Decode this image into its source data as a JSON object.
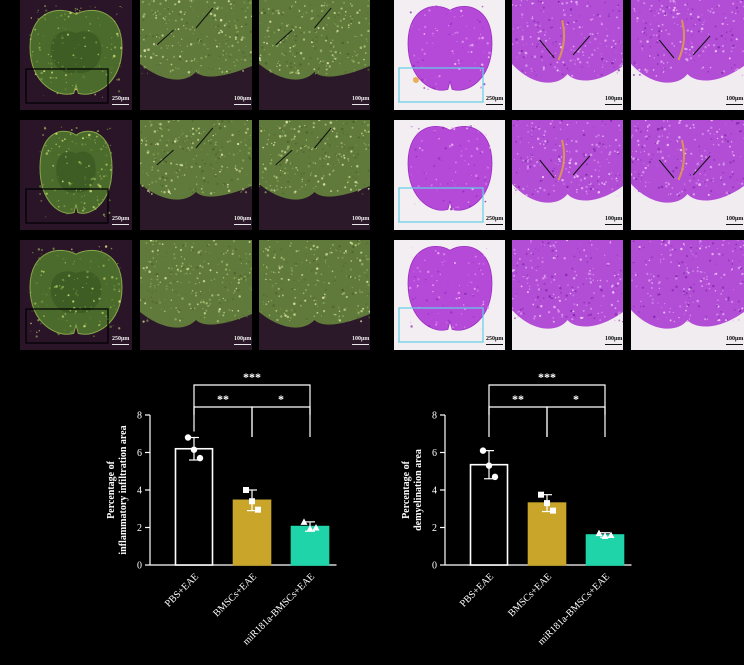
{
  "micrographs": {
    "scale_labels": {
      "overview": "250μm",
      "zoom": "100μm"
    }
  },
  "chart_data": [
    {
      "type": "bar",
      "title": "",
      "xlabel": "",
      "ylabel": "Percentage of\ninflammatory infiltration area",
      "categories": [
        "PBS+EAE",
        "BMSCs+EAE",
        "miR181a-BMSCs+EAE"
      ],
      "values": [
        6.2,
        3.45,
        2.05
      ],
      "errors": [
        0.6,
        0.55,
        0.25
      ],
      "points": [
        [
          6.8,
          6.15,
          5.7
        ],
        [
          4.0,
          3.4,
          2.95
        ],
        [
          2.3,
          1.95,
          2.0
        ]
      ],
      "point_markers": [
        "circle",
        "square",
        "triangle"
      ],
      "bar_colors": [
        "#ffffff",
        "#c9a52a",
        "#1ed4a8"
      ],
      "ylim": [
        0,
        8
      ],
      "yticks": [
        0,
        2,
        4,
        6,
        8
      ],
      "significance": [
        {
          "from": 0,
          "to": 2,
          "label": "***"
        },
        {
          "from": 0,
          "to": 1,
          "label": "**"
        },
        {
          "from": 1,
          "to": 2,
          "label": "*"
        }
      ],
      "grid": false
    },
    {
      "type": "bar",
      "title": "",
      "xlabel": "",
      "ylabel": "Percentage of\ndemyelination area",
      "categories": [
        "PBS+EAE",
        "BMSCs+EAE",
        "miR181a-BMSCs+EAE"
      ],
      "values": [
        5.35,
        3.3,
        1.6
      ],
      "errors": [
        0.75,
        0.45,
        0.12
      ],
      "points": [
        [
          6.1,
          5.3,
          4.7
        ],
        [
          3.75,
          3.3,
          2.9
        ],
        [
          1.7,
          1.55,
          1.6
        ]
      ],
      "point_markers": [
        "circle",
        "square",
        "triangle"
      ],
      "bar_colors": [
        "#ffffff",
        "#c9a52a",
        "#1ed4a8"
      ],
      "ylim": [
        0,
        8
      ],
      "yticks": [
        0,
        2,
        4,
        6,
        8
      ],
      "significance": [
        {
          "from": 0,
          "to": 2,
          "label": "***"
        },
        {
          "from": 0,
          "to": 1,
          "label": "**"
        },
        {
          "from": 1,
          "to": 2,
          "label": "*"
        }
      ],
      "grid": false
    }
  ]
}
